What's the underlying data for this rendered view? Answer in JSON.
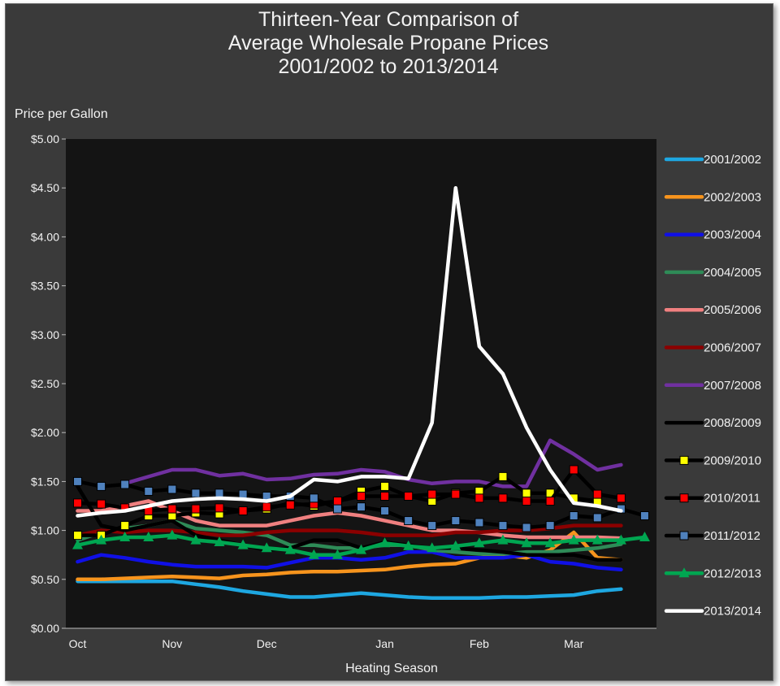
{
  "chart_data": {
    "type": "line",
    "title_lines": [
      "Thirteen-Year Comparison of",
      "Average Wholesale Propane Prices",
      "2001/2002  to 2013/2014"
    ],
    "xlabel": "Heating Season",
    "ylabel": "Price per Gallon",
    "ylim": [
      0,
      5
    ],
    "ytick_values": [
      0,
      0.5,
      1.0,
      1.5,
      2.0,
      2.5,
      3.0,
      3.5,
      4.0,
      4.5,
      5.0
    ],
    "ytick_labels": [
      "$0.00",
      "$0.50",
      "$1.00",
      "$1.50",
      "$2.00",
      "$2.50",
      "$3.00",
      "$3.50",
      "$4.00",
      "$4.50",
      "$5.00"
    ],
    "xlim": [
      0,
      25
    ],
    "x_categories": [
      {
        "label": "Oct",
        "x": 0.5
      },
      {
        "label": "Nov",
        "x": 4.5
      },
      {
        "label": "Dec",
        "x": 8.5
      },
      {
        "label": "Jan",
        "x": 13.5
      },
      {
        "label": "Feb",
        "x": 17.5
      },
      {
        "label": "Mar",
        "x": 21.5
      }
    ],
    "grid": false,
    "legend_position": "right",
    "series": [
      {
        "name": "2001/2002",
        "color": "#1ea7e1",
        "marker": "none",
        "x": [
          0.5,
          1.5,
          2.5,
          3.5,
          4.5,
          5.5,
          6.5,
          7.5,
          8.5,
          9.5,
          10.5,
          11.5,
          12.5,
          13.5,
          14.5,
          15.5,
          16.5,
          17.5,
          18.5,
          19.5,
          20.5,
          21.5,
          22.5,
          23.5
        ],
        "values": [
          0.48,
          0.48,
          0.48,
          0.48,
          0.48,
          0.45,
          0.42,
          0.38,
          0.35,
          0.32,
          0.32,
          0.34,
          0.36,
          0.34,
          0.32,
          0.31,
          0.31,
          0.31,
          0.32,
          0.32,
          0.33,
          0.34,
          0.38,
          0.4
        ]
      },
      {
        "name": "2002/2003",
        "color": "#f7941d",
        "marker": "none",
        "x": [
          0.5,
          1.5,
          2.5,
          3.5,
          4.5,
          5.5,
          6.5,
          7.5,
          8.5,
          9.5,
          10.5,
          11.5,
          12.5,
          13.5,
          14.5,
          15.5,
          16.5,
          17.5,
          18.5,
          19.5,
          20.5,
          21.5,
          22.5,
          23.5
        ],
        "values": [
          0.5,
          0.5,
          0.51,
          0.52,
          0.53,
          0.52,
          0.51,
          0.54,
          0.55,
          0.57,
          0.58,
          0.58,
          0.59,
          0.6,
          0.63,
          0.65,
          0.66,
          0.72,
          0.75,
          0.72,
          0.8,
          0.98,
          0.72,
          0.7
        ]
      },
      {
        "name": "2003/2004",
        "color": "#1010e6",
        "marker": "none",
        "x": [
          0.5,
          1.5,
          2.5,
          3.5,
          4.5,
          5.5,
          6.5,
          7.5,
          8.5,
          9.5,
          10.5,
          11.5,
          12.5,
          13.5,
          14.5,
          15.5,
          16.5,
          17.5,
          18.5,
          19.5,
          20.5,
          21.5,
          22.5,
          23.5
        ],
        "values": [
          0.68,
          0.75,
          0.72,
          0.68,
          0.65,
          0.63,
          0.63,
          0.63,
          0.62,
          0.67,
          0.72,
          0.72,
          0.7,
          0.72,
          0.78,
          0.78,
          0.72,
          0.72,
          0.72,
          0.75,
          0.68,
          0.66,
          0.62,
          0.6
        ]
      },
      {
        "name": "2004/2005",
        "color": "#2e8b57",
        "marker": "none",
        "x": [
          0.5,
          1.5,
          2.5,
          3.5,
          4.5,
          5.5,
          6.5,
          7.5,
          8.5,
          9.5,
          10.5,
          11.5,
          12.5,
          13.5,
          14.5,
          15.5,
          16.5,
          17.5,
          18.5,
          19.5,
          20.5,
          21.5,
          22.5,
          23.5
        ],
        "values": [
          0.9,
          0.98,
          1.02,
          1.05,
          1.1,
          1.02,
          1.0,
          0.98,
          0.95,
          0.85,
          0.85,
          0.82,
          0.82,
          0.85,
          0.85,
          0.8,
          0.78,
          0.76,
          0.76,
          0.78,
          0.78,
          0.8,
          0.82,
          0.86
        ]
      },
      {
        "name": "2005/2006",
        "color": "#f08080",
        "marker": "none",
        "x": [
          0.5,
          1.5,
          2.5,
          3.5,
          4.5,
          5.5,
          6.5,
          7.5,
          8.5,
          9.5,
          10.5,
          11.5,
          12.5,
          13.5,
          14.5,
          15.5,
          16.5,
          17.5,
          18.5,
          19.5,
          20.5,
          21.5,
          22.5,
          23.5
        ],
        "values": [
          1.2,
          1.2,
          1.25,
          1.3,
          1.2,
          1.1,
          1.05,
          1.05,
          1.05,
          1.1,
          1.15,
          1.18,
          1.15,
          1.1,
          1.05,
          1.0,
          1.0,
          0.98,
          0.95,
          0.93,
          0.93,
          0.93,
          0.93,
          0.92
        ]
      },
      {
        "name": "2006/2007",
        "color": "#8b0000",
        "marker": "none",
        "x": [
          0.5,
          1.5,
          2.5,
          3.5,
          4.5,
          5.5,
          6.5,
          7.5,
          8.5,
          9.5,
          10.5,
          11.5,
          12.5,
          13.5,
          14.5,
          15.5,
          16.5,
          17.5,
          18.5,
          19.5,
          20.5,
          21.5,
          22.5,
          23.5
        ],
        "values": [
          0.95,
          1.0,
          0.98,
          1.0,
          1.0,
          0.98,
          0.95,
          0.95,
          0.98,
          1.0,
          1.0,
          1.0,
          0.98,
          0.95,
          0.95,
          0.95,
          0.98,
          0.98,
          1.0,
          1.0,
          1.02,
          1.05,
          1.05,
          1.05
        ]
      },
      {
        "name": "2007/2008",
        "color": "#7030a0",
        "marker": "none",
        "x": [
          2.5,
          3.5,
          4.5,
          5.5,
          6.5,
          7.5,
          8.5,
          9.5,
          10.5,
          11.5,
          12.5,
          13.5,
          14.5,
          15.5,
          16.5,
          17.5,
          18.5,
          19.5,
          20.5,
          21.5,
          22.5,
          23.5
        ],
        "values": [
          1.48,
          1.55,
          1.62,
          1.62,
          1.56,
          1.58,
          1.52,
          1.53,
          1.57,
          1.58,
          1.62,
          1.6,
          1.52,
          1.48,
          1.5,
          1.5,
          1.45,
          1.45,
          1.92,
          1.78,
          1.62,
          1.67
        ]
      },
      {
        "name": "2008/2009",
        "color": "#000000",
        "marker": "none",
        "x": [
          0.5,
          1.5,
          2.5,
          3.5,
          4.5,
          5.5,
          6.5,
          7.5,
          8.5,
          9.5,
          10.5,
          11.5,
          12.5,
          13.5,
          14.5,
          15.5,
          16.5,
          17.5,
          18.5,
          19.5,
          20.5,
          21.5,
          22.5,
          23.5
        ],
        "values": [
          1.45,
          1.05,
          1.0,
          1.05,
          1.1,
          0.95,
          0.9,
          0.85,
          0.8,
          0.82,
          0.9,
          0.9,
          0.82,
          0.88,
          0.85,
          0.82,
          0.82,
          0.8,
          0.78,
          0.75,
          0.75,
          0.75,
          0.7,
          0.7
        ]
      },
      {
        "name": "2009/2010",
        "color": "#000000",
        "marker": "square",
        "marker_color": "#ffff00",
        "x": [
          0.5,
          1.5,
          2.5,
          3.5,
          4.5,
          5.5,
          6.5,
          7.5,
          8.5,
          9.5,
          10.5,
          11.5,
          12.5,
          13.5,
          14.5,
          15.5,
          16.5,
          17.5,
          18.5,
          19.5,
          20.5,
          21.5,
          22.5
        ],
        "values": [
          0.95,
          0.95,
          1.05,
          1.15,
          1.15,
          1.18,
          1.17,
          1.2,
          1.22,
          1.28,
          1.25,
          1.3,
          1.4,
          1.45,
          1.35,
          1.3,
          1.38,
          1.4,
          1.55,
          1.38,
          1.38,
          1.33,
          1.3
        ]
      },
      {
        "name": "2010/2011",
        "color": "#000000",
        "marker": "square",
        "marker_color": "#ff0000",
        "x": [
          0.5,
          1.5,
          2.5,
          3.5,
          4.5,
          5.5,
          6.5,
          7.5,
          8.5,
          9.5,
          10.5,
          11.5,
          12.5,
          13.5,
          14.5,
          15.5,
          16.5,
          17.5,
          18.5,
          19.5,
          20.5,
          21.5,
          22.5,
          23.5
        ],
        "values": [
          1.28,
          1.27,
          1.23,
          1.2,
          1.22,
          1.22,
          1.23,
          1.2,
          1.24,
          1.26,
          1.27,
          1.3,
          1.35,
          1.35,
          1.35,
          1.37,
          1.37,
          1.33,
          1.33,
          1.3,
          1.3,
          1.62,
          1.37,
          1.33
        ]
      },
      {
        "name": "2011/2012",
        "color": "#000000",
        "marker": "square",
        "marker_color": "#4f81bd",
        "x": [
          0.5,
          1.5,
          2.5,
          3.5,
          4.5,
          5.5,
          6.5,
          7.5,
          8.5,
          9.5,
          10.5,
          11.5,
          12.5,
          13.5,
          14.5,
          15.5,
          16.5,
          17.5,
          18.5,
          19.5,
          20.5,
          21.5,
          22.5,
          23.5,
          24.5
        ],
        "values": [
          1.5,
          1.45,
          1.47,
          1.4,
          1.42,
          1.38,
          1.38,
          1.37,
          1.35,
          1.35,
          1.33,
          1.22,
          1.24,
          1.2,
          1.1,
          1.05,
          1.1,
          1.08,
          1.05,
          1.03,
          1.05,
          1.15,
          1.13,
          1.22,
          1.15
        ]
      },
      {
        "name": "2012/2013",
        "color": "#00a651",
        "marker": "triangle",
        "marker_color": "#00a651",
        "x": [
          0.5,
          1.5,
          2.5,
          3.5,
          4.5,
          5.5,
          6.5,
          7.5,
          8.5,
          9.5,
          10.5,
          11.5,
          12.5,
          13.5,
          14.5,
          15.5,
          16.5,
          17.5,
          18.5,
          19.5,
          20.5,
          21.5,
          22.5,
          23.5,
          24.5
        ],
        "values": [
          0.85,
          0.9,
          0.93,
          0.93,
          0.95,
          0.9,
          0.88,
          0.85,
          0.82,
          0.8,
          0.75,
          0.75,
          0.8,
          0.87,
          0.84,
          0.82,
          0.84,
          0.87,
          0.9,
          0.87,
          0.87,
          0.9,
          0.9,
          0.9,
          0.93
        ]
      },
      {
        "name": "2013/2014",
        "color": "#ffffff",
        "marker": "none",
        "x": [
          0.5,
          1.5,
          2.5,
          3.5,
          4.5,
          5.5,
          6.5,
          7.5,
          8.5,
          9.5,
          10.5,
          11.5,
          12.5,
          13.5,
          14.5,
          15.5,
          16.5,
          17.5,
          18.5,
          19.5,
          20.5,
          21.5,
          22.5,
          23.5
        ],
        "values": [
          1.15,
          1.18,
          1.2,
          1.25,
          1.3,
          1.32,
          1.33,
          1.32,
          1.3,
          1.35,
          1.52,
          1.5,
          1.55,
          1.55,
          1.53,
          2.1,
          4.5,
          2.88,
          2.6,
          2.05,
          1.62,
          1.28,
          1.25,
          1.2
        ]
      }
    ]
  }
}
